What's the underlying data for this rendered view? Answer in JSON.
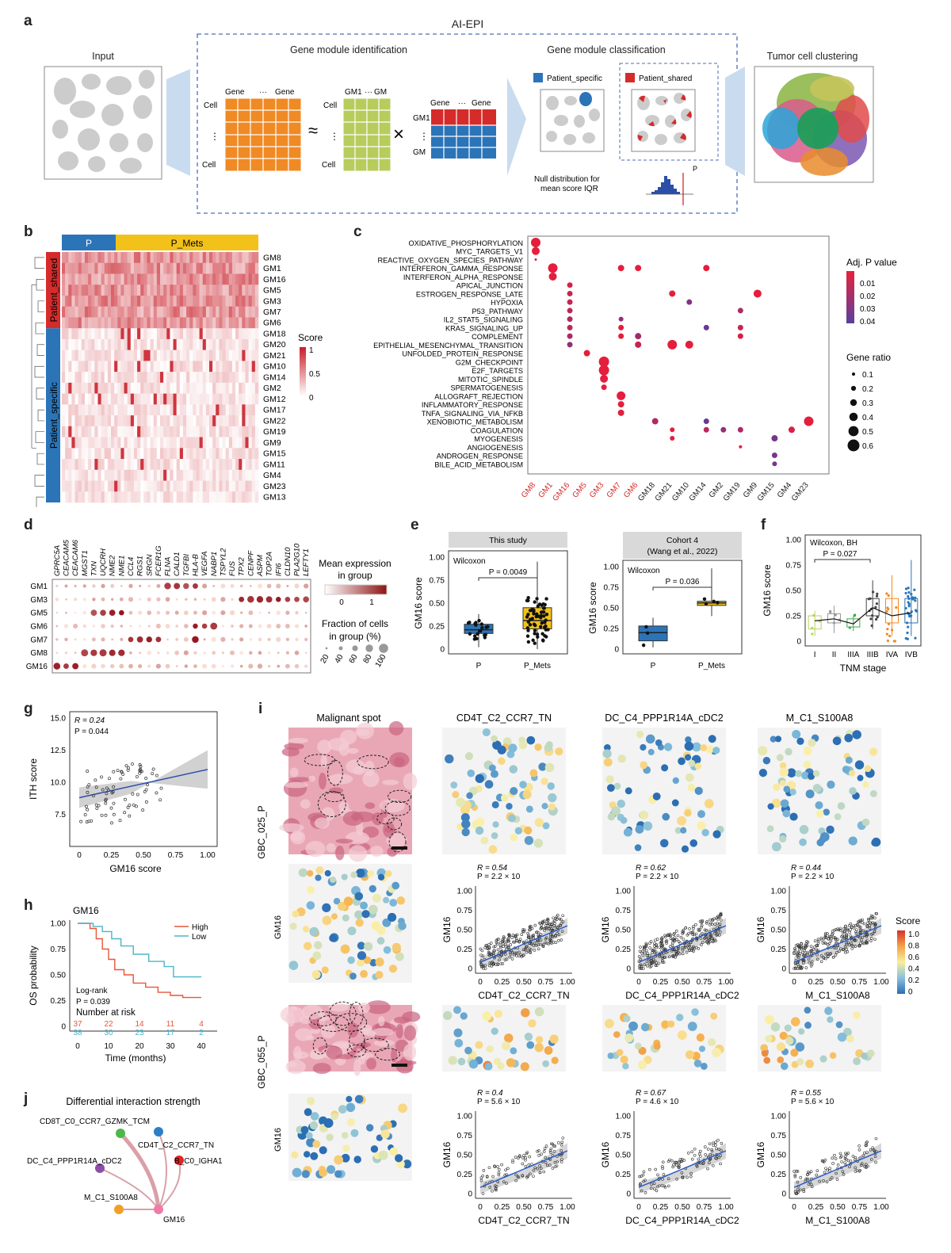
{
  "panel_labels": {
    "a": "a",
    "b": "b",
    "c": "c",
    "d": "d",
    "e": "e",
    "f": "f",
    "g": "g",
    "h": "h",
    "i": "i",
    "j": "j"
  },
  "panel_a": {
    "title": "AI-EPI",
    "input": "Input",
    "gmi": "Gene module identification",
    "gmc": "Gene module classification",
    "tcc": "Tumor cell clustering",
    "gene1": "Gene",
    "geneN": "Gene",
    "cell1": "Cell",
    "cellN": "Cell",
    "gm1": "GM1",
    "gmN": "GM",
    "dots": "···",
    "vdots": "⋮",
    "approx": "≈",
    "times": "×",
    "patient_specific": "Patient_specific",
    "patient_shared": "Patient_shared",
    "null_dist_1": "Null distribution for",
    "null_dist_2": "mean score IQR",
    "piqr": "P"
  },
  "panel_b": {
    "col_groups": [
      "P",
      "P_Mets"
    ],
    "row_groups": [
      "Patient_shared",
      "Patient_specific"
    ],
    "rows": [
      "GM8",
      "GM1",
      "GM16",
      "GM5",
      "GM3",
      "GM7",
      "GM6",
      "GM18",
      "GM20",
      "GM21",
      "GM10",
      "GM14",
      "GM2",
      "GM12",
      "GM17",
      "GM22",
      "GM19",
      "GM9",
      "GM15",
      "GM11",
      "GM4",
      "GM23",
      "GM13"
    ],
    "legend_title": "Score",
    "legend_ticks": [
      "1",
      "0.5",
      "0"
    ]
  },
  "panel_c": {
    "pathways": [
      "OXIDATIVE_PHOSPHORYLATION",
      "MYC_TARGETS_V1",
      "REACTIVE_OXYGEN_SPECIES_PATHWAY",
      "INTERFERON_GAMMA_RESPONSE",
      "INTERFERON_ALPHA_RESPONSE",
      "APICAL_JUNCTION",
      "ESTROGEN_RESPONSE_LATE",
      "HYPOXIA",
      "P53_PATHWAY",
      "IL2_STAT5_SIGNALING",
      "KRAS_SIGNALING_UP",
      "COMPLEMENT",
      "EPITHELIAL_MESENCHYMAL_TRANSITION",
      "UNFOLDED_PROTEIN_RESPONSE",
      "G2M_CHECKPOINT",
      "E2F_TARGETS",
      "MITOTIC_SPINDLE",
      "SPERMATOGENESIS",
      "ALLOGRAFT_REJECTION",
      "INFLAMMATORY_RESPONSE",
      "TNFA_SIGNALING_VIA_NFKB",
      "XENOBIOTIC_METABOLISM",
      "COAGULATION",
      "MYOGENESIS",
      "ANGIOGENESIS",
      "ANDROGEN_RESPONSE",
      "BILE_ACID_METABOLISM"
    ],
    "modules": [
      "GM8",
      "GM1",
      "GM16",
      "GM5",
      "GM3",
      "GM7",
      "GM6",
      "GM18",
      "GM21",
      "GM10",
      "GM14",
      "GM2",
      "GM19",
      "GM9",
      "GM15",
      "GM4",
      "GM23"
    ],
    "shared_modules": [
      "GM8",
      "GM1",
      "GM16",
      "GM5",
      "GM3",
      "GM7",
      "GM6"
    ],
    "padj_title": "Adj. P value",
    "padj_ticks": [
      "0.01",
      "0.02",
      "0.03",
      "0.04"
    ],
    "ratio_title": "Gene ratio",
    "ratio_ticks": [
      "0.1",
      "0.2",
      "0.3",
      "0.4",
      "0.5",
      "0.6"
    ]
  },
  "panel_d": {
    "genes": [
      "GPRC5A",
      "CEACAM5",
      "CEACAM6",
      "MGST1",
      "TXN",
      "UQCRH",
      "NME2",
      "NME1",
      "CCL4",
      "RGS1",
      "SRGN",
      "FCER1G",
      "FLNA",
      "CALD1",
      "TGFBI",
      "HLA-B",
      "VEGFA",
      "NABP1",
      "TSPYL2",
      "FUS",
      "TPX2",
      "CENPF",
      "ASPM",
      "TOP2A",
      "IFI6",
      "CLDN10",
      "PLA2G10",
      "LEFTY1"
    ],
    "modules": [
      "GM1",
      "GM3",
      "GM5",
      "GM6",
      "GM7",
      "GM8",
      "GM16"
    ],
    "expr_title_1": "Mean expression",
    "expr_title_2": "in group",
    "expr_ticks": [
      "0",
      "1"
    ],
    "frac_title_1": "Fraction of cells",
    "frac_title_2": "in group (%)",
    "frac_ticks": [
      "20",
      "40",
      "60",
      "80",
      "100"
    ]
  },
  "panel_e": {
    "left": {
      "title": "This study",
      "test": "Wilcoxon",
      "p": "P = 0.0049",
      "groups": [
        "P",
        "P_Mets"
      ]
    },
    "right": {
      "title_1": "Cohort 4",
      "title_2": "(Wang et al., 2022)",
      "test": "Wilcoxon",
      "p": "P = 0.036",
      "groups": [
        "P",
        "P_Mets"
      ]
    },
    "ylabel": "GM16 score",
    "yticks": [
      "0",
      "0.25",
      "0.50",
      "0.75",
      "1.00"
    ]
  },
  "panel_f": {
    "test": "Wilcoxon, BH",
    "p": "P = 0.027",
    "ylabel": "GM16 score",
    "xlabel": "TNM stage",
    "stages": [
      "I",
      "II",
      "IIIA",
      "IIIB",
      "IVA",
      "IVB"
    ],
    "yticks": [
      "0",
      "0.25",
      "0.50",
      "0.75",
      "1.00"
    ]
  },
  "panel_g": {
    "r": "R = 0.24",
    "p": "P = 0.044",
    "ylabel": "ITH score",
    "xlabel": "GM16 score",
    "yticks": [
      "7.5",
      "10.0",
      "12.5",
      "15.0"
    ],
    "xticks": [
      "0",
      "0.25",
      "0.50",
      "0.75",
      "1.00"
    ]
  },
  "panel_h": {
    "title": "GM16",
    "legend": [
      "High",
      "Low"
    ],
    "test": "Log-rank",
    "p": "P = 0.039",
    "risk_title": "Number at risk",
    "risk_high": [
      "37",
      "22",
      "14",
      "11",
      "4"
    ],
    "risk_low": [
      "38",
      "30",
      "23",
      "17",
      "2"
    ],
    "ylabel": "OS probability",
    "xlabel": "Time (months)",
    "yticks": [
      "0",
      "0.25",
      "0.50",
      "0.75",
      "1.00"
    ],
    "xticks": [
      "0",
      "10",
      "20",
      "30",
      "40"
    ],
    "colors": {
      "high": "#e8553a",
      "low": "#4bb5c9"
    }
  },
  "panel_i": {
    "col_titles": [
      "Malignant spot",
      "CD4T_C2_CCR7_TN",
      "DC_C4_PPP1R14A_cDC2",
      "M_C1_S100A8"
    ],
    "samples": [
      "GBC_025_P",
      "GBC_055_P"
    ],
    "gm16": "GM16",
    "scatter_ylabel": "GM16",
    "xlabels": [
      "CD4T_C2_CCR7_TN",
      "DC_C4_PPP1R14A_cDC2",
      "M_C1_S100A8"
    ],
    "row1_stats": [
      {
        "r": "R = 0.54",
        "p": "P = 2.2 × 10"
      },
      {
        "r": "R = 0.62",
        "p": "P = 2.2 × 10"
      },
      {
        "r": "R = 0.44",
        "p": "P = 2.2 × 10"
      }
    ],
    "row2_stats": [
      {
        "r": "R = 0.4",
        "p": "P = 5.6 × 10"
      },
      {
        "r": "R = 0.67",
        "p": "P = 4.6 × 10"
      },
      {
        "r": "R = 0.55",
        "p": "P = 5.6 × 10"
      }
    ],
    "ticks": [
      "0",
      "0.25",
      "0.50",
      "0.75",
      "1.00"
    ],
    "score_title": "Score",
    "score_ticks": [
      "1.0",
      "0.8",
      "0.6",
      "0.4",
      "0.2",
      "0"
    ]
  },
  "panel_j": {
    "title": "Differential interaction strength",
    "nodes": [
      "CD8T_C0_CCR7_GZMK_TCM",
      "CD4T_C2_CCR7_TN",
      "DC_C4_PPP1R14A_cDC2",
      "B_C0_IGHA1",
      "M_C1_S100A8",
      "GM16"
    ]
  }
}
